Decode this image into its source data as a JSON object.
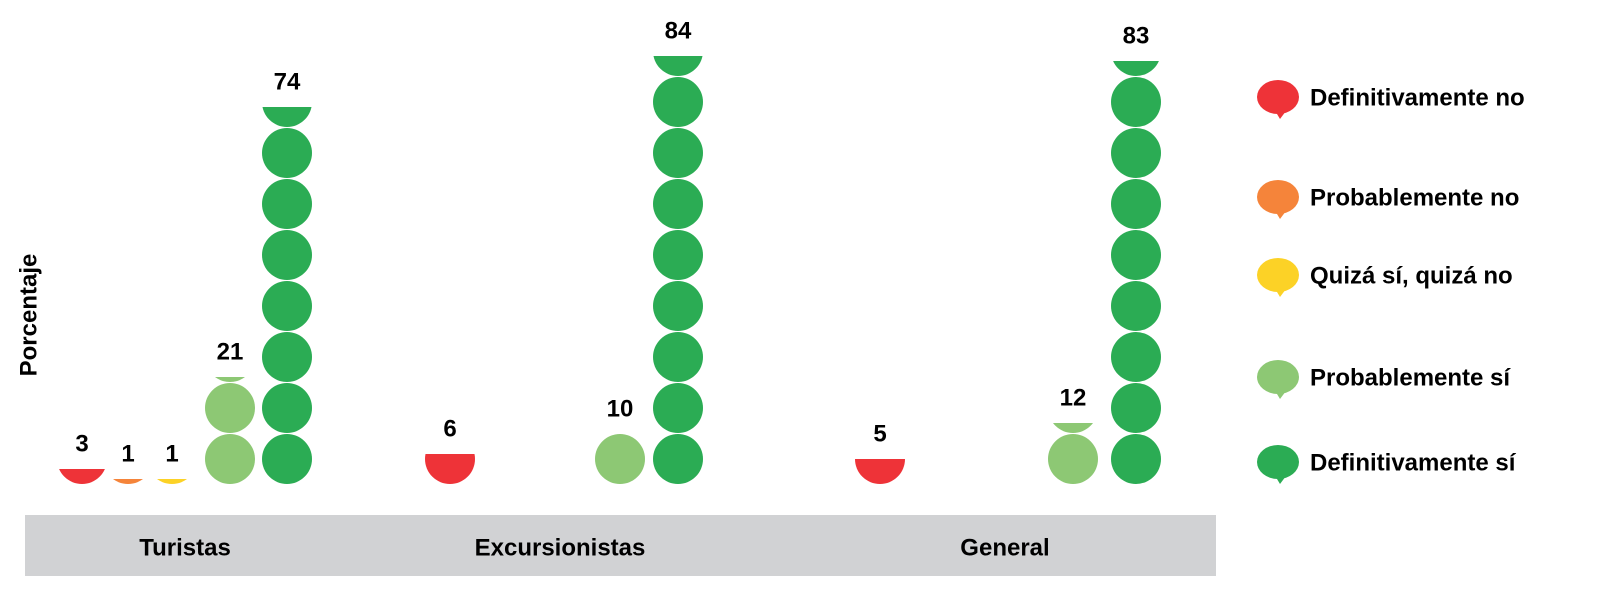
{
  "chart_data": {
    "type": "pictograph",
    "y_label": "Porcentaje",
    "categories": [
      "Turistas",
      "Excursionistas",
      "General"
    ],
    "series": [
      {
        "name": "Definitivamente no",
        "color": "#ee3338",
        "values": [
          3,
          6,
          5
        ]
      },
      {
        "name": "Probablemente no",
        "color": "#f5843a",
        "values": [
          1,
          null,
          null
        ]
      },
      {
        "name": "Quizá sí, quizá no",
        "color": "#fcd226",
        "values": [
          1,
          null,
          null
        ]
      },
      {
        "name": "Probablemente sí",
        "color": "#8dc874",
        "values": [
          21,
          10,
          12
        ]
      },
      {
        "name": "Definitivamente sí",
        "color": "#2bac54",
        "values": [
          74,
          84,
          83
        ]
      }
    ]
  }
}
